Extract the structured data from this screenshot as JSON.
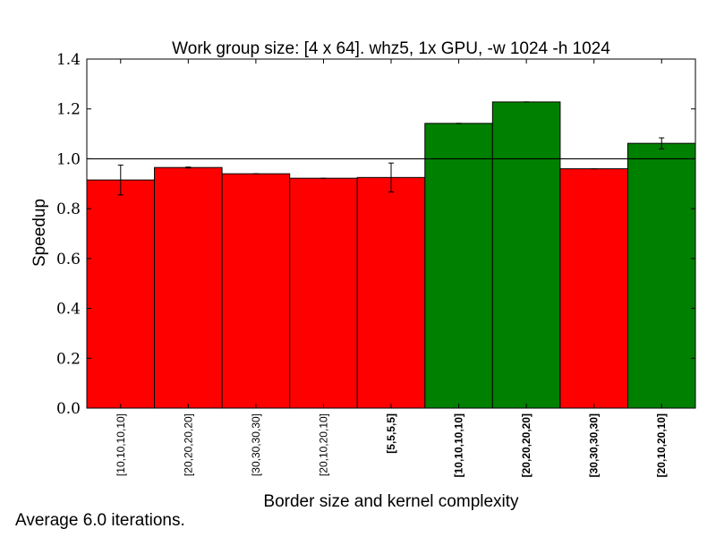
{
  "chart_data": {
    "type": "bar",
    "title": "Work group size: [4 x 64]. whz5, 1x GPU, -w 1024 -h 1024",
    "xlabel": "Border size and kernel complexity",
    "ylabel": "Speedup",
    "ylim": [
      0.0,
      1.4
    ],
    "yticks": [
      "0.0",
      "0.2",
      "0.4",
      "0.6",
      "0.8",
      "1.0",
      "1.2",
      "1.4"
    ],
    "reference_line": 1.0,
    "categories": [
      "[10,10,10,10]",
      "[20,20,20,20]",
      "[30,30,30,30]",
      "[20,10,20,10]",
      "[5,5,5,5]",
      "[10,10,10,10]",
      "[20,20,20,20]",
      "[30,30,30,30]",
      "[20,10,20,10]"
    ],
    "bold_labels": [
      false,
      false,
      false,
      false,
      true,
      true,
      true,
      true,
      true
    ],
    "values": [
      0.915,
      0.965,
      0.94,
      0.922,
      0.925,
      1.142,
      1.228,
      0.96,
      1.062
    ],
    "errors": [
      0.06,
      0.002,
      0.0,
      0.0,
      0.058,
      0.0,
      0.0,
      0.0,
      0.022
    ],
    "colors": [
      "#ff0000",
      "#ff0000",
      "#ff0000",
      "#ff0000",
      "#ff0000",
      "#008000",
      "#008000",
      "#ff0000",
      "#008000"
    ],
    "grid": false
  },
  "footnote": "Average 6.0 iterations."
}
